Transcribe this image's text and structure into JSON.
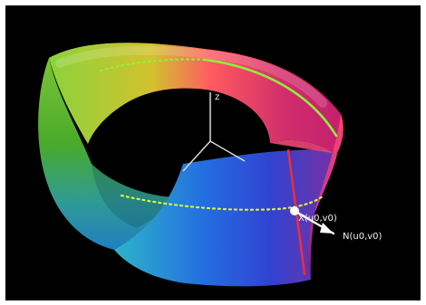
{
  "figure": {
    "background_color": "#000000",
    "border_color": "#ffffff",
    "axis_label_z": "z",
    "point_label": "X(u0,v0)",
    "normal_label": "N(u0,v0)",
    "axis_color": "#d9d9d9",
    "curve_color": "#8ff03a",
    "normal_line_color": "#ff2b2b",
    "label_color": "#f2f2f2"
  }
}
